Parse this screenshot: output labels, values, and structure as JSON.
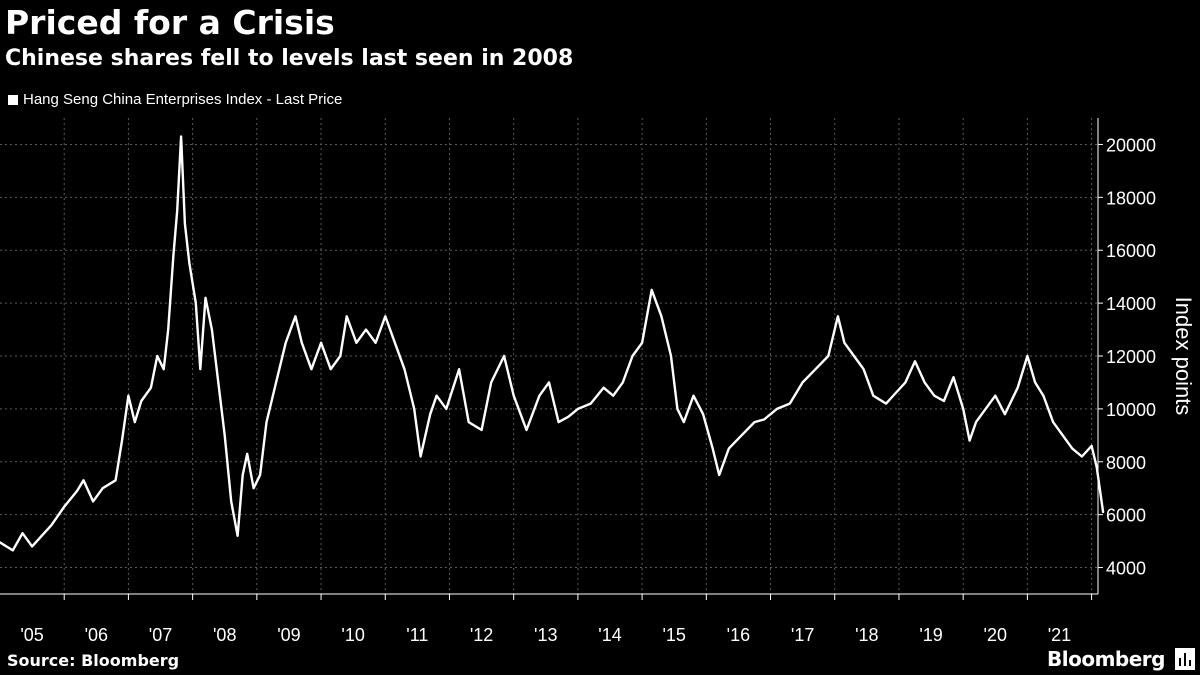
{
  "title": "Priced for a Crisis",
  "subtitle": "Chinese shares fell to levels last seen in 2008",
  "legend_label": "Hang Seng China Enterprises Index - Last Price",
  "source": "Source: Bloomberg",
  "brand": "Bloomberg",
  "colors": {
    "background": "#000000",
    "line": "#ffffff",
    "grid": "#5a5a5a",
    "text": "#ffffff"
  },
  "chart_data": {
    "type": "line",
    "title": "Priced for a Crisis",
    "subtitle": "Chinese shares fell to levels last seen in 2008",
    "xlabel": "",
    "ylabel": "Index points",
    "ylim": [
      3000,
      21000
    ],
    "xlim": [
      2005.0,
      2022.1
    ],
    "yticks": [
      4000,
      6000,
      8000,
      10000,
      12000,
      14000,
      16000,
      18000,
      20000
    ],
    "xtick_labels": [
      "'05",
      "'06",
      "'07",
      "'08",
      "'09",
      "'10",
      "'11",
      "'12",
      "'13",
      "'14",
      "'15",
      "'16",
      "'17",
      "'18",
      "'19",
      "'20",
      "'21"
    ],
    "grid": true,
    "legend": "top-left",
    "series": [
      {
        "name": "Hang Seng China Enterprises Index - Last Price",
        "x": [
          2005.0,
          2005.2,
          2005.35,
          2005.5,
          2005.65,
          2005.8,
          2006.0,
          2006.2,
          2006.3,
          2006.45,
          2006.6,
          2006.8,
          2006.9,
          2007.0,
          2007.1,
          2007.2,
          2007.35,
          2007.45,
          2007.55,
          2007.62,
          2007.7,
          2007.76,
          2007.82,
          2007.88,
          2007.95,
          2008.05,
          2008.12,
          2008.2,
          2008.3,
          2008.4,
          2008.5,
          2008.6,
          2008.7,
          2008.78,
          2008.85,
          2008.95,
          2009.05,
          2009.15,
          2009.3,
          2009.45,
          2009.6,
          2009.7,
          2009.85,
          2010.0,
          2010.15,
          2010.3,
          2010.4,
          2010.55,
          2010.7,
          2010.85,
          2011.0,
          2011.15,
          2011.3,
          2011.45,
          2011.55,
          2011.7,
          2011.8,
          2011.95,
          2012.15,
          2012.3,
          2012.5,
          2012.65,
          2012.85,
          2013.0,
          2013.2,
          2013.4,
          2013.55,
          2013.7,
          2013.85,
          2014.0,
          2014.2,
          2014.4,
          2014.55,
          2014.7,
          2014.85,
          2015.0,
          2015.15,
          2015.3,
          2015.45,
          2015.55,
          2015.65,
          2015.8,
          2015.95,
          2016.1,
          2016.2,
          2016.35,
          2016.55,
          2016.75,
          2016.9,
          2017.1,
          2017.3,
          2017.5,
          2017.7,
          2017.9,
          2018.05,
          2018.15,
          2018.3,
          2018.45,
          2018.6,
          2018.8,
          2018.95,
          2019.1,
          2019.25,
          2019.4,
          2019.55,
          2019.7,
          2019.85,
          2020.0,
          2020.1,
          2020.2,
          2020.35,
          2020.5,
          2020.65,
          2020.85,
          2021.0,
          2021.12,
          2021.25,
          2021.4,
          2021.55,
          2021.7,
          2021.85,
          2022.0,
          2022.08,
          2022.18
        ],
        "values": [
          4950,
          4650,
          5300,
          4800,
          5200,
          5600,
          6300,
          6900,
          7300,
          6500,
          7000,
          7300,
          8800,
          10500,
          9500,
          10300,
          10800,
          12000,
          11500,
          13000,
          15800,
          17500,
          20300,
          17000,
          15500,
          14000,
          11500,
          14200,
          13000,
          11000,
          9000,
          6500,
          5200,
          7500,
          8300,
          7000,
          7500,
          9500,
          11000,
          12500,
          13500,
          12500,
          11500,
          12500,
          11500,
          12000,
          13500,
          12500,
          13000,
          12500,
          13500,
          12500,
          11500,
          10000,
          8200,
          9800,
          10500,
          10000,
          11500,
          9500,
          9200,
          11000,
          12000,
          10500,
          9200,
          10500,
          11000,
          9500,
          9700,
          10000,
          10200,
          10800,
          10500,
          11000,
          12000,
          12500,
          14500,
          13500,
          12000,
          10000,
          9500,
          10500,
          9800,
          8500,
          7500,
          8500,
          9000,
          9500,
          9600,
          10000,
          10200,
          11000,
          11500,
          12000,
          13500,
          12500,
          12000,
          11500,
          10500,
          10200,
          10600,
          11000,
          11800,
          11000,
          10500,
          10300,
          11200,
          10000,
          8800,
          9500,
          10000,
          10500,
          9800,
          10800,
          12000,
          11000,
          10500,
          9500,
          9000,
          8500,
          8200,
          8600,
          7800,
          6100
        ]
      }
    ]
  }
}
